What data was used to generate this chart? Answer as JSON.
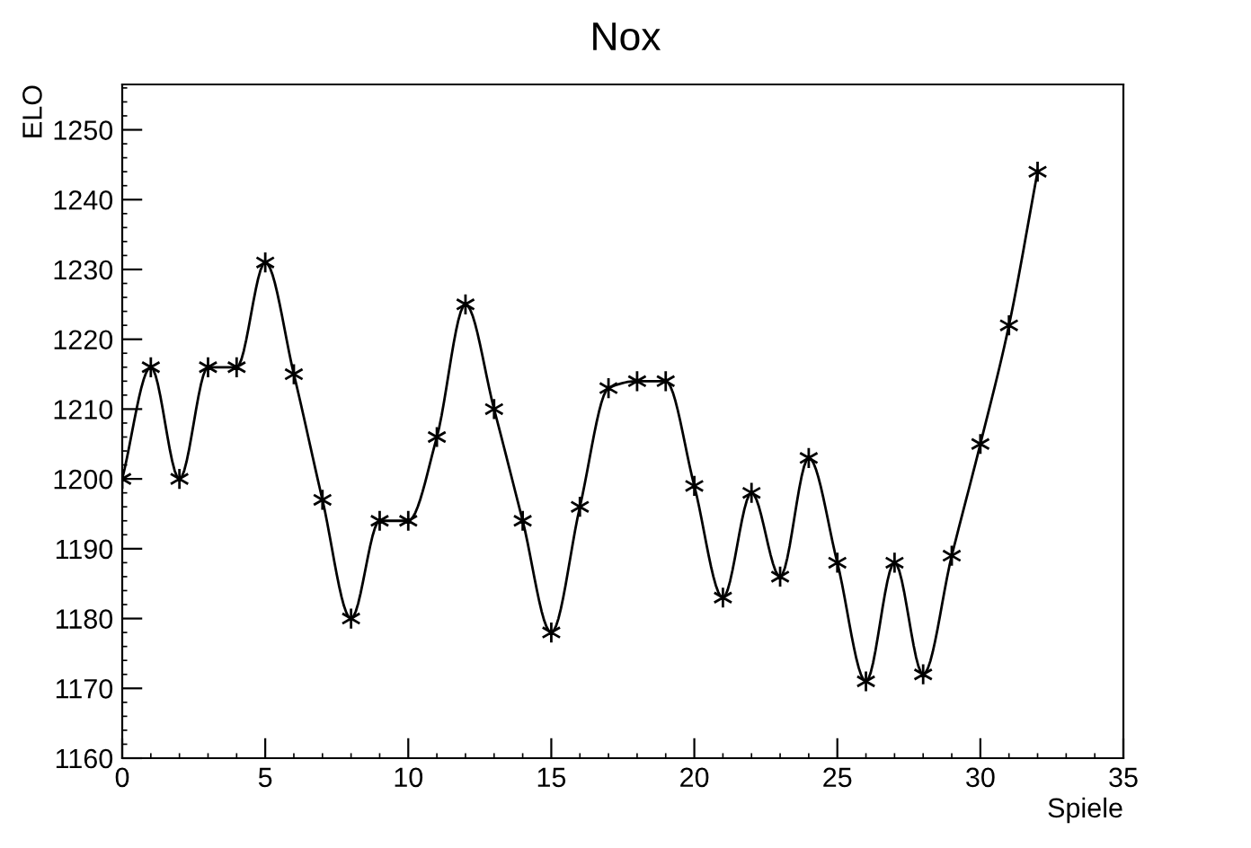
{
  "chart_data": {
    "type": "line",
    "title": "Nox",
    "xlabel": "Spiele",
    "ylabel": "ELO",
    "x": [
      0,
      1,
      2,
      3,
      4,
      5,
      6,
      7,
      8,
      9,
      10,
      11,
      12,
      13,
      14,
      15,
      16,
      17,
      18,
      19,
      20,
      21,
      22,
      23,
      24,
      25,
      26,
      27,
      28,
      29,
      30,
      31,
      32
    ],
    "series": [
      {
        "color": "#000000",
        "values": [
          1200,
          1216,
          1200,
          1216,
          1216,
          1231,
          1215,
          1197,
          1180,
          1194,
          1194,
          1206,
          1225,
          1210,
          1194,
          1178,
          1196,
          1213,
          1214,
          1214,
          1199,
          1183,
          1198,
          1186,
          1203,
          1188,
          1171,
          1188,
          1172,
          1189,
          1205,
          1222,
          1244
        ]
      }
    ],
    "xlim": [
      0,
      35
    ],
    "xticks": [
      0,
      5,
      10,
      15,
      20,
      25,
      30,
      35
    ],
    "ylim": [
      1160,
      1256.5
    ],
    "yticks": [
      1160,
      1170,
      1180,
      1190,
      1200,
      1210,
      1220,
      1230,
      1240,
      1250
    ],
    "marker": "cross",
    "grid": false,
    "legend": false
  }
}
